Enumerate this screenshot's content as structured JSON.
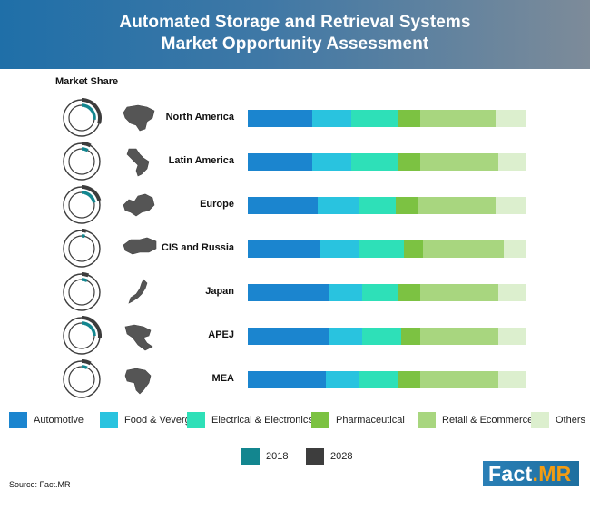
{
  "header": {
    "title_line1": "Automated Storage and Retrieval Systems",
    "title_line2": "Market Opportunity Assessment"
  },
  "market_share_label": "Market Share",
  "colors": {
    "Automotive": "#1b85cf",
    "Food & Veverges": "#29c3df",
    "Electrical & Electronics": "#2ee0b8",
    "Pharmaceutical": "#7cc242",
    "Retail & Ecommerce": "#a8d67f",
    "Others": "#dcefce",
    "2018": "#13868f",
    "2028": "#3d3d3d"
  },
  "legend": [
    "Automotive",
    "Food & Veverges",
    "Electrical & Electronics",
    "Pharmaceutical",
    "Retail & Ecommerce",
    "Others"
  ],
  "year_legend": [
    "2018",
    "2028"
  ],
  "source": "Source: Fact.MR",
  "logo": {
    "main": "Fact",
    "accent": ".MR"
  },
  "chart_data": {
    "type": "bar",
    "stacked": true,
    "orientation": "horizontal",
    "title": "Automated Storage and Retrieval Systems Market Opportunity Assessment",
    "categories": [
      "North America",
      "Latin America",
      "Europe",
      "CIS and Russia",
      "Japan",
      "APEJ",
      "MEA"
    ],
    "series": [
      {
        "name": "Automotive",
        "values": [
          23,
          23,
          25,
          26,
          29,
          29,
          28
        ]
      },
      {
        "name": "Food & Veverges",
        "values": [
          14,
          14,
          15,
          14,
          12,
          12,
          12
        ]
      },
      {
        "name": "Electrical & Electronics",
        "values": [
          17,
          17,
          13,
          16,
          13,
          14,
          14
        ]
      },
      {
        "name": "Pharmaceutical",
        "values": [
          8,
          8,
          8,
          7,
          8,
          7,
          8
        ]
      },
      {
        "name": "Retail & Ecommerce",
        "values": [
          27,
          28,
          28,
          29,
          28,
          28,
          28
        ]
      },
      {
        "name": "Others",
        "values": [
          11,
          10,
          11,
          8,
          10,
          10,
          10
        ]
      }
    ],
    "market_share": [
      {
        "region": "North America",
        "2018": 27,
        "2028": 30
      },
      {
        "region": "Latin America",
        "2018": 8,
        "2028": 8
      },
      {
        "region": "Europe",
        "2018": 22,
        "2028": 21
      },
      {
        "region": "CIS and Russia",
        "2018": 4,
        "2028": 4
      },
      {
        "region": "Japan",
        "2018": 7,
        "2028": 6
      },
      {
        "region": "APEJ",
        "2018": 25,
        "2028": 27
      },
      {
        "region": "MEA",
        "2018": 7,
        "2028": 8
      }
    ]
  }
}
